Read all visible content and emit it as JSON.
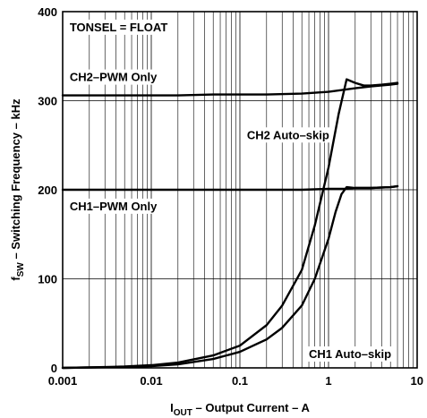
{
  "chart_data": {
    "type": "line",
    "title": "",
    "xlabel": {
      "prefix": "I",
      "subscript": "OUT",
      "rest": " – Output Current – A"
    },
    "ylabel": {
      "prefix": "f",
      "subscript": "SW",
      "rest": " – Switching Frequency – kHz"
    },
    "xscale": "log",
    "xlim": [
      0.001,
      10
    ],
    "ylim": [
      0,
      400
    ],
    "xticks": [
      {
        "value": 0.001,
        "label": "0.001"
      },
      {
        "value": 0.01,
        "label": "0.01"
      },
      {
        "value": 0.1,
        "label": "0.1"
      },
      {
        "value": 1,
        "label": "1"
      },
      {
        "value": 10,
        "label": "10"
      }
    ],
    "yticks": [
      {
        "value": 0,
        "label": "0"
      },
      {
        "value": 100,
        "label": "100"
      },
      {
        "value": 200,
        "label": "200"
      },
      {
        "value": 300,
        "label": "300"
      },
      {
        "value": 400,
        "label": "400"
      }
    ],
    "grid": true,
    "annotations": [
      {
        "text": "TONSEL = FLOAT",
        "x": 0.0012,
        "y": 378
      },
      {
        "text": "CH2–PWM Only",
        "x": 0.0012,
        "y": 322
      },
      {
        "text": "CH2 Auto–skip",
        "x": 0.12,
        "y": 257
      },
      {
        "text": "CH1–PWM Only",
        "x": 0.0012,
        "y": 177
      },
      {
        "text": "CH1 Auto–skip",
        "x": 0.6,
        "y": 11
      }
    ],
    "series": [
      {
        "x": [
          0.001,
          0.002,
          0.005,
          0.01,
          0.02,
          0.05,
          0.1,
          0.2,
          0.5,
          1,
          2,
          3,
          5,
          6
        ],
        "y": [
          306,
          306,
          306,
          306,
          306,
          307,
          307,
          307,
          308,
          310,
          314,
          316,
          318,
          319
        ]
      },
      {
        "x": [
          0.001,
          0.002,
          0.005,
          0.01,
          0.02,
          0.05,
          0.1,
          0.2,
          0.3,
          0.5,
          0.7,
          1,
          1.3,
          1.6,
          2,
          2.5,
          3,
          4,
          5,
          6
        ],
        "y": [
          0,
          0.5,
          1.5,
          3,
          6,
          14,
          25,
          48,
          70,
          110,
          160,
          225,
          285,
          324,
          320,
          317,
          317,
          318,
          319,
          320
        ]
      },
      {
        "x": [
          0.001,
          0.002,
          0.005,
          0.01,
          0.02,
          0.05,
          0.1,
          0.2,
          0.5,
          1,
          1.5,
          2,
          3,
          5,
          6
        ],
        "y": [
          200,
          200,
          200,
          200,
          200,
          200,
          200,
          200,
          200,
          201,
          201,
          202,
          202,
          203,
          204
        ]
      },
      {
        "x": [
          0.001,
          0.002,
          0.005,
          0.01,
          0.02,
          0.05,
          0.1,
          0.2,
          0.3,
          0.5,
          0.7,
          1,
          1.2,
          1.4,
          1.6,
          2,
          3,
          5,
          6
        ],
        "y": [
          0,
          0.5,
          1,
          2,
          4,
          10,
          18,
          32,
          45,
          70,
          100,
          145,
          175,
          195,
          203,
          202,
          202,
          203,
          204
        ]
      }
    ]
  }
}
